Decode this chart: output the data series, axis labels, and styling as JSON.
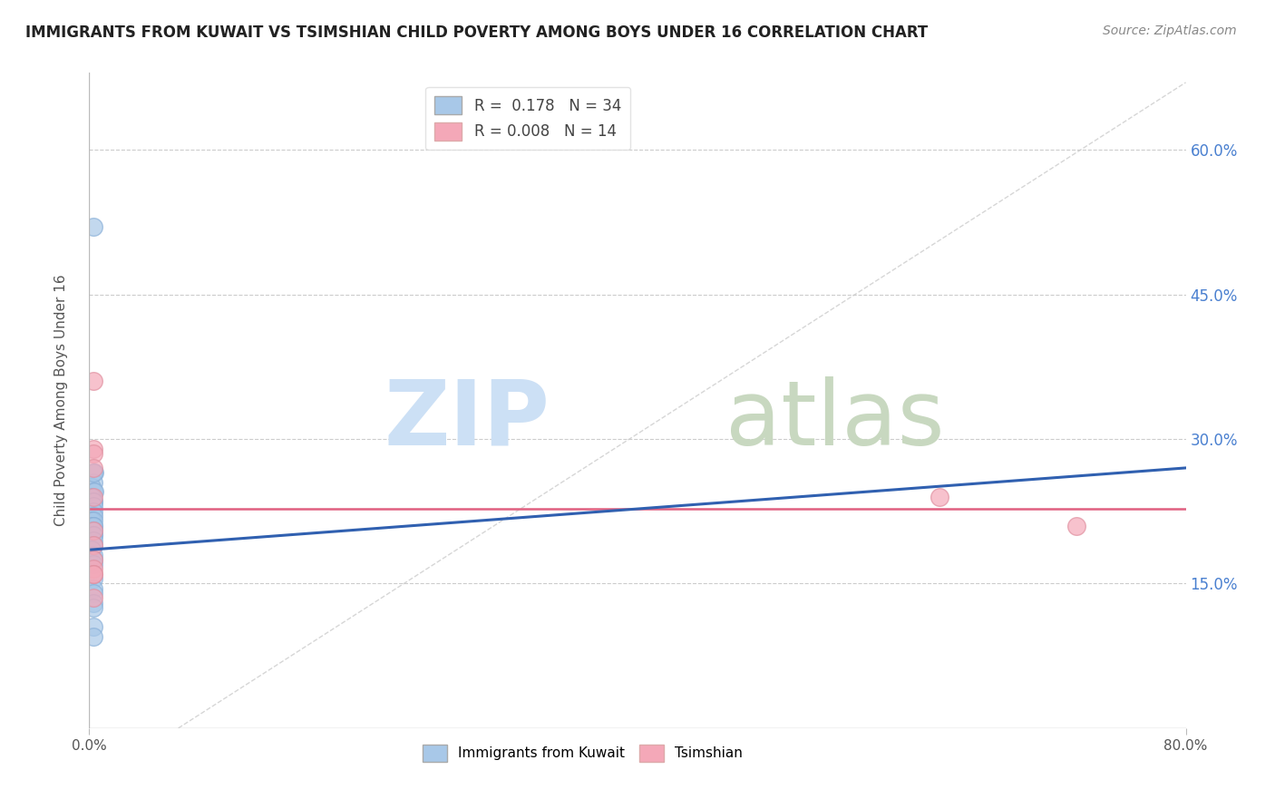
{
  "title": "IMMIGRANTS FROM KUWAIT VS TSIMSHIAN CHILD POVERTY AMONG BOYS UNDER 16 CORRELATION CHART",
  "source": "Source: ZipAtlas.com",
  "ylabel": "Child Poverty Among Boys Under 16",
  "xlim": [
    0.0,
    0.8
  ],
  "ylim": [
    0.0,
    0.68
  ],
  "xtick_values": [
    0.0,
    0.8
  ],
  "xtick_labels": [
    "0.0%",
    "80.0%"
  ],
  "ytick_values": [
    0.15,
    0.3,
    0.45,
    0.6
  ],
  "ytick_labels": [
    "15.0%",
    "30.0%",
    "45.0%",
    "60.0%"
  ],
  "legend_r1": "R =  0.178",
  "legend_n1": "N = 34",
  "legend_r2": "R = 0.008",
  "legend_n2": "N = 14",
  "blue_color": "#a8c8e8",
  "pink_color": "#f4a8b8",
  "blue_line_color": "#3060b0",
  "pink_line_color": "#e06080",
  "background_color": "#ffffff",
  "grid_color": "#cccccc",
  "title_color": "#222222",
  "source_color": "#888888",
  "axis_color": "#bbbbbb",
  "right_tick_color": "#4a80d0",
  "blue_scatter_x": [
    0.003,
    0.004,
    0.003,
    0.002,
    0.003,
    0.004,
    0.002,
    0.003,
    0.003,
    0.003,
    0.003,
    0.003,
    0.002,
    0.003,
    0.002,
    0.003,
    0.003,
    0.003,
    0.003,
    0.003,
    0.003,
    0.003,
    0.002,
    0.003,
    0.003,
    0.003,
    0.003,
    0.003,
    0.003,
    0.003,
    0.003,
    0.003,
    0.003,
    0.003
  ],
  "blue_scatter_y": [
    0.52,
    0.265,
    0.255,
    0.25,
    0.245,
    0.245,
    0.24,
    0.235,
    0.235,
    0.23,
    0.225,
    0.22,
    0.215,
    0.215,
    0.21,
    0.21,
    0.21,
    0.205,
    0.2,
    0.2,
    0.195,
    0.19,
    0.185,
    0.18,
    0.175,
    0.17,
    0.265,
    0.155,
    0.145,
    0.14,
    0.13,
    0.125,
    0.105,
    0.095
  ],
  "pink_scatter_x": [
    0.003,
    0.003,
    0.003,
    0.003,
    0.003,
    0.003,
    0.003,
    0.003,
    0.003,
    0.003,
    0.62,
    0.72,
    0.003,
    0.003
  ],
  "pink_scatter_y": [
    0.36,
    0.29,
    0.285,
    0.27,
    0.24,
    0.205,
    0.19,
    0.175,
    0.165,
    0.16,
    0.24,
    0.21,
    0.16,
    0.135
  ],
  "blue_trend_x": [
    0.0,
    0.8
  ],
  "blue_trend_y": [
    0.185,
    0.27
  ],
  "pink_trend_x": [
    0.0,
    0.8
  ],
  "pink_trend_y": [
    0.228,
    0.228
  ],
  "diag_line_x": [
    0.065,
    0.8
  ],
  "diag_line_y": [
    0.0,
    0.67
  ]
}
